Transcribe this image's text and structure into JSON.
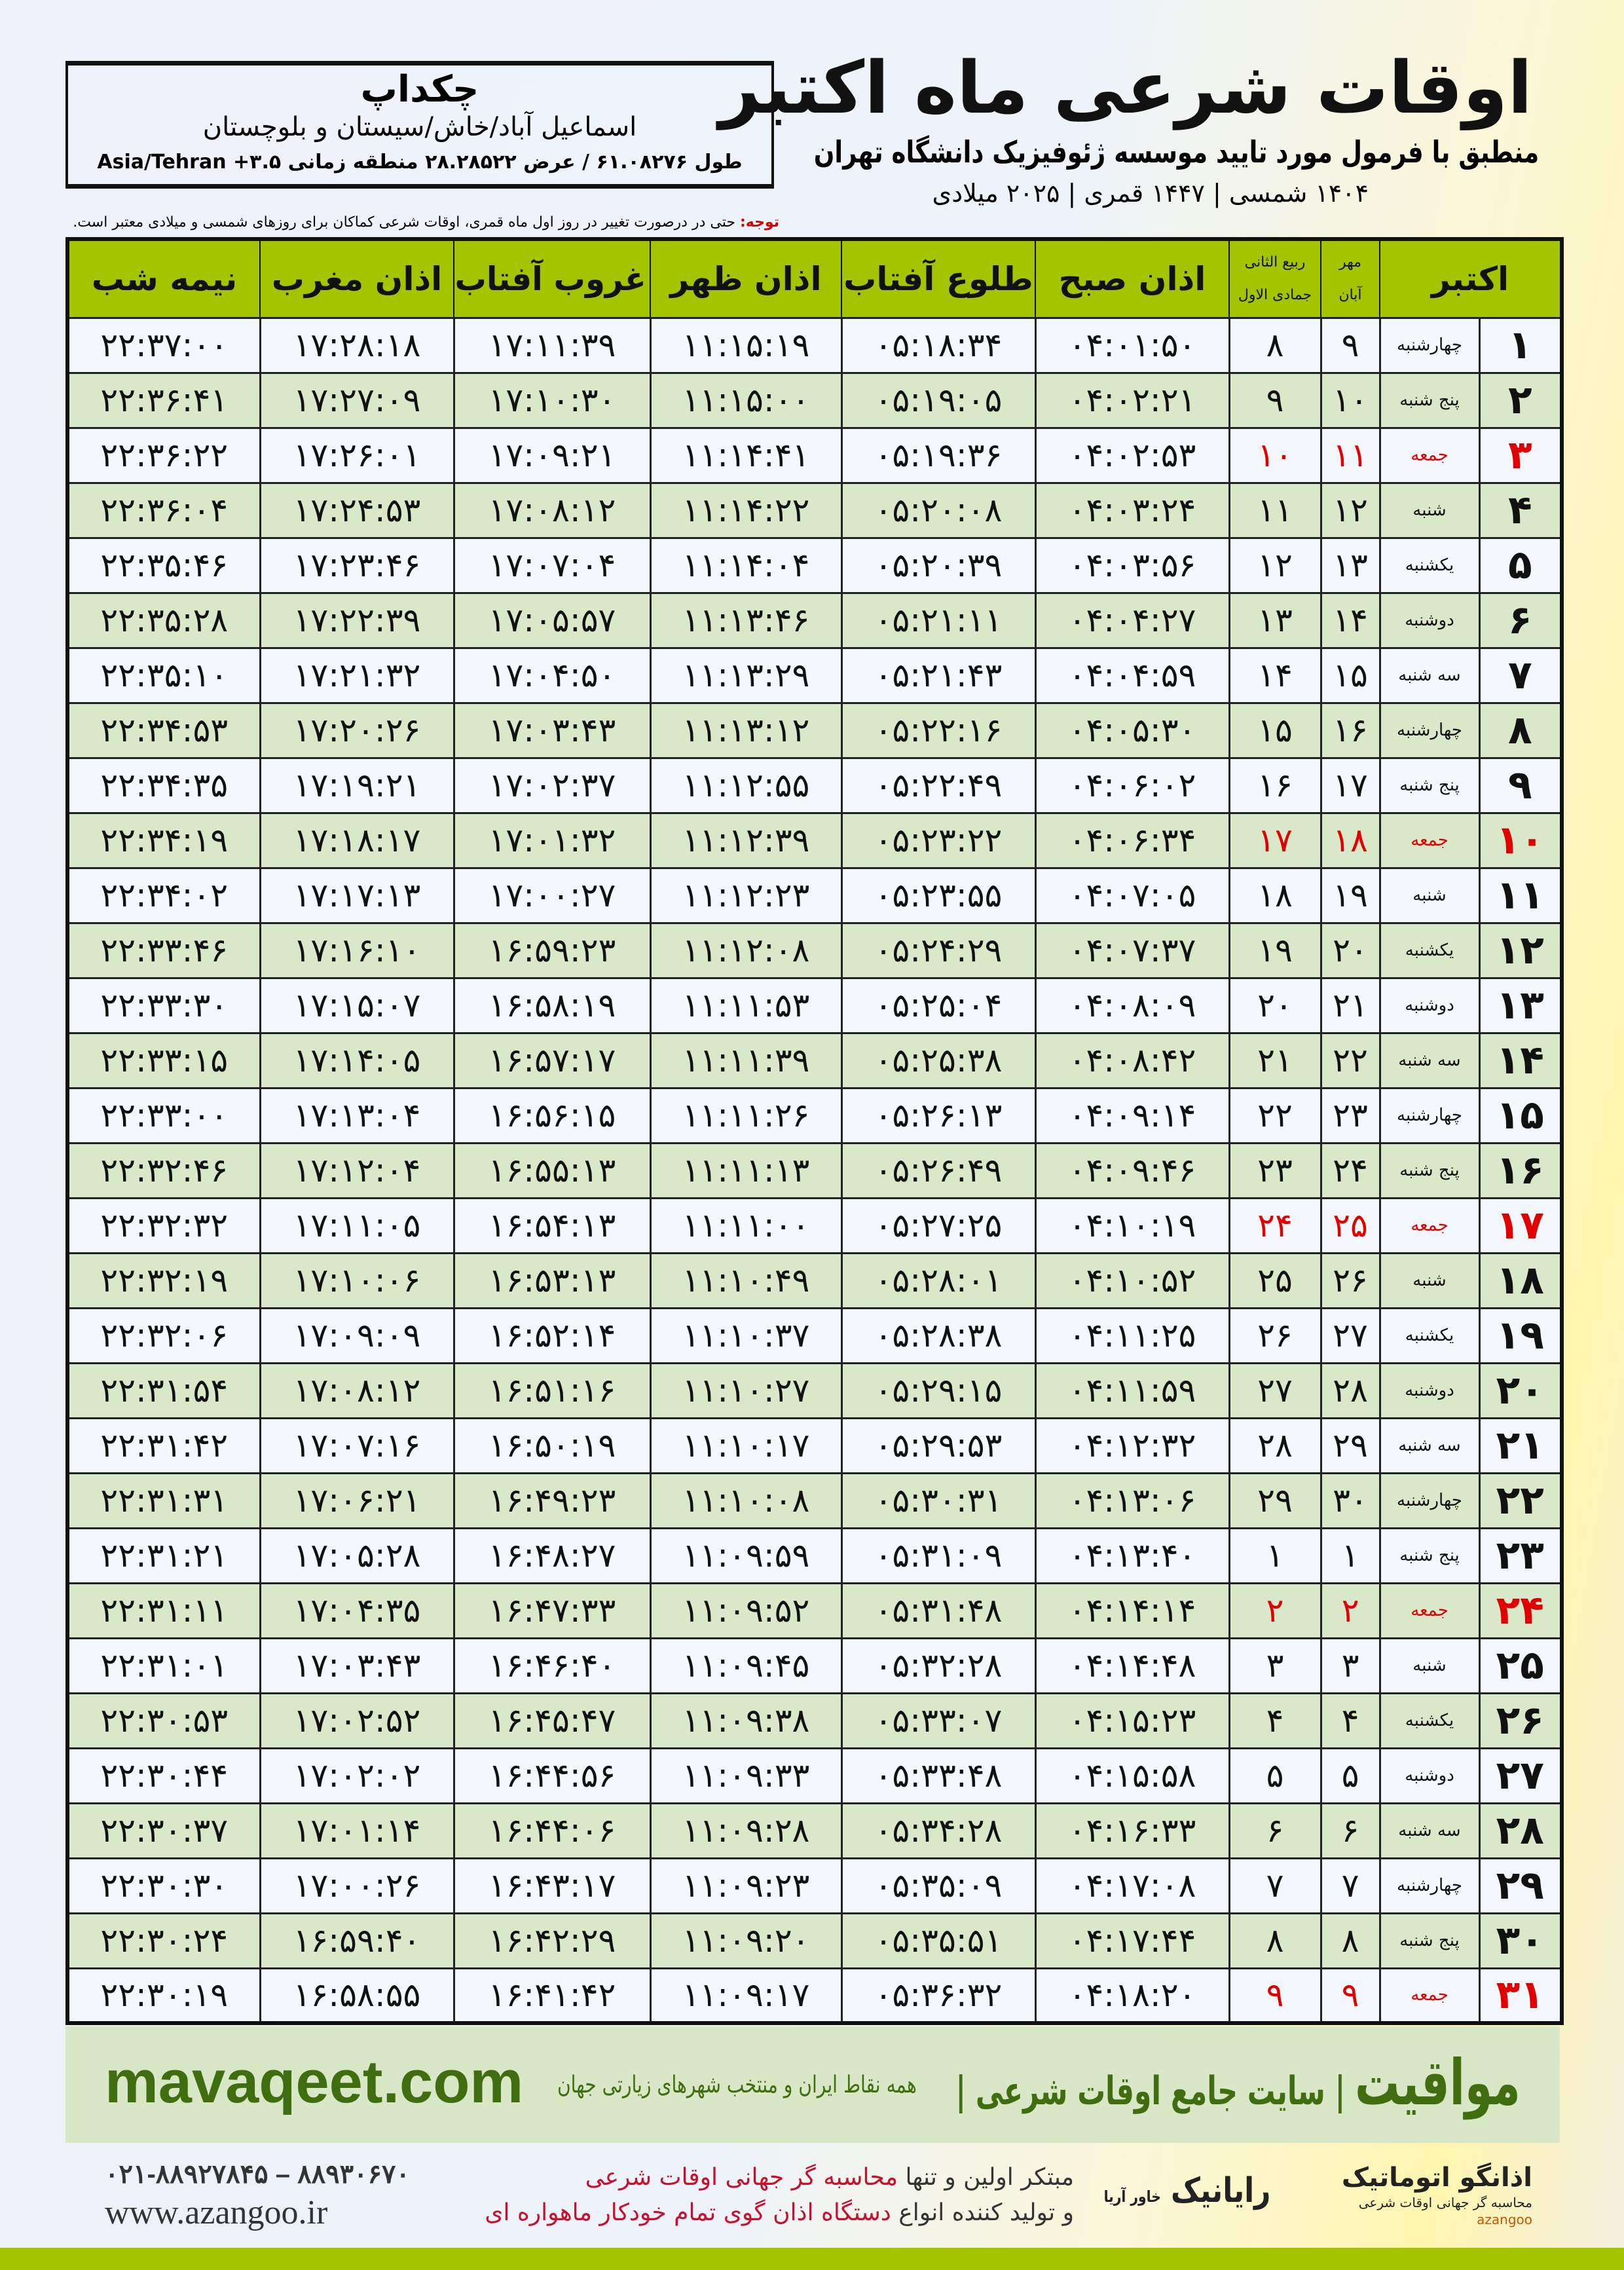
{
  "header": {
    "city": "چکداپ",
    "province": "اسماعیل آباد/خاش/سیستان و بلوچستان",
    "coords": "طول ۶۱.۰۸۲۷۶ / عرض ۲۸.۲۸۵۲۲ منطقه زمانی ۳.۵+ Asia/Tehran",
    "title": "اوقات شرعی ماه اکتبر",
    "subtitle": "منطبق با فرمول مورد تایید موسسه ژئوفیزیک دانشگاه تهران",
    "dateline": "۱۴۰۴ شمسی | ۱۴۴۷ قمری | ۲۰۲۵ میلادی",
    "note_label": "توجه:",
    "note_text": " حتی در درصورت تغییر در روز اول ماه قمری، اوقات شرعی کماکان برای روزهای شمسی و میلادی معتبر است."
  },
  "colors": {
    "header_green": "#a5c400",
    "row_green": "#d9e8c8",
    "friday_red": "#e00000",
    "brand_green": "#3f6d0f"
  },
  "columns": {
    "day": "اکتبر",
    "shamsi_top": "مهر",
    "shamsi_bottom": "آبان",
    "qamari_top": "ربیع الثانی",
    "qamari_bottom": "جمادی الاول",
    "fajr": "اذان صبح",
    "sunrise": "طلوع آفتاب",
    "dhuhr": "اذان ظهر",
    "sunset": "غروب آفتاب",
    "maghrib": "اذان مغرب",
    "midnight": "نیمه شب"
  },
  "rows": [
    {
      "day": "۱",
      "weekday": "چهارشنبه",
      "shamsi": "۹",
      "qamari": "۸",
      "fajr": "۰۴:۰۱:۵۰",
      "sunrise": "۰۵:۱۸:۳۴",
      "dhuhr": "۱۱:۱۵:۱۹",
      "sunset": "۱۷:۱۱:۳۹",
      "maghrib": "۱۷:۲۸:۱۸",
      "midnight": "۲۲:۳۷:۰۰",
      "friday": false
    },
    {
      "day": "۲",
      "weekday": "پنج شنبه",
      "shamsi": "۱۰",
      "qamari": "۹",
      "fajr": "۰۴:۰۲:۲۱",
      "sunrise": "۰۵:۱۹:۰۵",
      "dhuhr": "۱۱:۱۵:۰۰",
      "sunset": "۱۷:۱۰:۳۰",
      "maghrib": "۱۷:۲۷:۰۹",
      "midnight": "۲۲:۳۶:۴۱",
      "friday": false
    },
    {
      "day": "۳",
      "weekday": "جمعه",
      "shamsi": "۱۱",
      "qamari": "۱۰",
      "fajr": "۰۴:۰۲:۵۳",
      "sunrise": "۰۵:۱۹:۳۶",
      "dhuhr": "۱۱:۱۴:۴۱",
      "sunset": "۱۷:۰۹:۲۱",
      "maghrib": "۱۷:۲۶:۰۱",
      "midnight": "۲۲:۳۶:۲۲",
      "friday": true
    },
    {
      "day": "۴",
      "weekday": "شنبه",
      "shamsi": "۱۲",
      "qamari": "۱۱",
      "fajr": "۰۴:۰۳:۲۴",
      "sunrise": "۰۵:۲۰:۰۸",
      "dhuhr": "۱۱:۱۴:۲۲",
      "sunset": "۱۷:۰۸:۱۲",
      "maghrib": "۱۷:۲۴:۵۳",
      "midnight": "۲۲:۳۶:۰۴",
      "friday": false
    },
    {
      "day": "۵",
      "weekday": "یکشنبه",
      "shamsi": "۱۳",
      "qamari": "۱۲",
      "fajr": "۰۴:۰۳:۵۶",
      "sunrise": "۰۵:۲۰:۳۹",
      "dhuhr": "۱۱:۱۴:۰۴",
      "sunset": "۱۷:۰۷:۰۴",
      "maghrib": "۱۷:۲۳:۴۶",
      "midnight": "۲۲:۳۵:۴۶",
      "friday": false
    },
    {
      "day": "۶",
      "weekday": "دوشنبه",
      "shamsi": "۱۴",
      "qamari": "۱۳",
      "fajr": "۰۴:۰۴:۲۷",
      "sunrise": "۰۵:۲۱:۱۱",
      "dhuhr": "۱۱:۱۳:۴۶",
      "sunset": "۱۷:۰۵:۵۷",
      "maghrib": "۱۷:۲۲:۳۹",
      "midnight": "۲۲:۳۵:۲۸",
      "friday": false
    },
    {
      "day": "۷",
      "weekday": "سه شنبه",
      "shamsi": "۱۵",
      "qamari": "۱۴",
      "fajr": "۰۴:۰۴:۵۹",
      "sunrise": "۰۵:۲۱:۴۳",
      "dhuhr": "۱۱:۱۳:۲۹",
      "sunset": "۱۷:۰۴:۵۰",
      "maghrib": "۱۷:۲۱:۳۲",
      "midnight": "۲۲:۳۵:۱۰",
      "friday": false
    },
    {
      "day": "۸",
      "weekday": "چهارشنبه",
      "shamsi": "۱۶",
      "qamari": "۱۵",
      "fajr": "۰۴:۰۵:۳۰",
      "sunrise": "۰۵:۲۲:۱۶",
      "dhuhr": "۱۱:۱۳:۱۲",
      "sunset": "۱۷:۰۳:۴۳",
      "maghrib": "۱۷:۲۰:۲۶",
      "midnight": "۲۲:۳۴:۵۳",
      "friday": false
    },
    {
      "day": "۹",
      "weekday": "پنج شنبه",
      "shamsi": "۱۷",
      "qamari": "۱۶",
      "fajr": "۰۴:۰۶:۰۲",
      "sunrise": "۰۵:۲۲:۴۹",
      "dhuhr": "۱۱:۱۲:۵۵",
      "sunset": "۱۷:۰۲:۳۷",
      "maghrib": "۱۷:۱۹:۲۱",
      "midnight": "۲۲:۳۴:۳۵",
      "friday": false
    },
    {
      "day": "۱۰",
      "weekday": "جمعه",
      "shamsi": "۱۸",
      "qamari": "۱۷",
      "fajr": "۰۴:۰۶:۳۴",
      "sunrise": "۰۵:۲۳:۲۲",
      "dhuhr": "۱۱:۱۲:۳۹",
      "sunset": "۱۷:۰۱:۳۲",
      "maghrib": "۱۷:۱۸:۱۷",
      "midnight": "۲۲:۳۴:۱۹",
      "friday": true
    },
    {
      "day": "۱۱",
      "weekday": "شنبه",
      "shamsi": "۱۹",
      "qamari": "۱۸",
      "fajr": "۰۴:۰۷:۰۵",
      "sunrise": "۰۵:۲۳:۵۵",
      "dhuhr": "۱۱:۱۲:۲۳",
      "sunset": "۱۷:۰۰:۲۷",
      "maghrib": "۱۷:۱۷:۱۳",
      "midnight": "۲۲:۳۴:۰۲",
      "friday": false
    },
    {
      "day": "۱۲",
      "weekday": "یکشنبه",
      "shamsi": "۲۰",
      "qamari": "۱۹",
      "fajr": "۰۴:۰۷:۳۷",
      "sunrise": "۰۵:۲۴:۲۹",
      "dhuhr": "۱۱:۱۲:۰۸",
      "sunset": "۱۶:۵۹:۲۳",
      "maghrib": "۱۷:۱۶:۱۰",
      "midnight": "۲۲:۳۳:۴۶",
      "friday": false
    },
    {
      "day": "۱۳",
      "weekday": "دوشنبه",
      "shamsi": "۲۱",
      "qamari": "۲۰",
      "fajr": "۰۴:۰۸:۰۹",
      "sunrise": "۰۵:۲۵:۰۴",
      "dhuhr": "۱۱:۱۱:۵۳",
      "sunset": "۱۶:۵۸:۱۹",
      "maghrib": "۱۷:۱۵:۰۷",
      "midnight": "۲۲:۳۳:۳۰",
      "friday": false
    },
    {
      "day": "۱۴",
      "weekday": "سه شنبه",
      "shamsi": "۲۲",
      "qamari": "۲۱",
      "fajr": "۰۴:۰۸:۴۲",
      "sunrise": "۰۵:۲۵:۳۸",
      "dhuhr": "۱۱:۱۱:۳۹",
      "sunset": "۱۶:۵۷:۱۷",
      "maghrib": "۱۷:۱۴:۰۵",
      "midnight": "۲۲:۳۳:۱۵",
      "friday": false
    },
    {
      "day": "۱۵",
      "weekday": "چهارشنبه",
      "shamsi": "۲۳",
      "qamari": "۲۲",
      "fajr": "۰۴:۰۹:۱۴",
      "sunrise": "۰۵:۲۶:۱۳",
      "dhuhr": "۱۱:۱۱:۲۶",
      "sunset": "۱۶:۵۶:۱۵",
      "maghrib": "۱۷:۱۳:۰۴",
      "midnight": "۲۲:۳۳:۰۰",
      "friday": false
    },
    {
      "day": "۱۶",
      "weekday": "پنج شنبه",
      "shamsi": "۲۴",
      "qamari": "۲۳",
      "fajr": "۰۴:۰۹:۴۶",
      "sunrise": "۰۵:۲۶:۴۹",
      "dhuhr": "۱۱:۱۱:۱۳",
      "sunset": "۱۶:۵۵:۱۳",
      "maghrib": "۱۷:۱۲:۰۴",
      "midnight": "۲۲:۳۲:۴۶",
      "friday": false
    },
    {
      "day": "۱۷",
      "weekday": "جمعه",
      "shamsi": "۲۵",
      "qamari": "۲۴",
      "fajr": "۰۴:۱۰:۱۹",
      "sunrise": "۰۵:۲۷:۲۵",
      "dhuhr": "۱۱:۱۱:۰۰",
      "sunset": "۱۶:۵۴:۱۳",
      "maghrib": "۱۷:۱۱:۰۵",
      "midnight": "۲۲:۳۲:۳۲",
      "friday": true
    },
    {
      "day": "۱۸",
      "weekday": "شنبه",
      "shamsi": "۲۶",
      "qamari": "۲۵",
      "fajr": "۰۴:۱۰:۵۲",
      "sunrise": "۰۵:۲۸:۰۱",
      "dhuhr": "۱۱:۱۰:۴۹",
      "sunset": "۱۶:۵۳:۱۳",
      "maghrib": "۱۷:۱۰:۰۶",
      "midnight": "۲۲:۳۲:۱۹",
      "friday": false
    },
    {
      "day": "۱۹",
      "weekday": "یکشنبه",
      "shamsi": "۲۷",
      "qamari": "۲۶",
      "fajr": "۰۴:۱۱:۲۵",
      "sunrise": "۰۵:۲۸:۳۸",
      "dhuhr": "۱۱:۱۰:۳۷",
      "sunset": "۱۶:۵۲:۱۴",
      "maghrib": "۱۷:۰۹:۰۹",
      "midnight": "۲۲:۳۲:۰۶",
      "friday": false
    },
    {
      "day": "۲۰",
      "weekday": "دوشنبه",
      "shamsi": "۲۸",
      "qamari": "۲۷",
      "fajr": "۰۴:۱۱:۵۹",
      "sunrise": "۰۵:۲۹:۱۵",
      "dhuhr": "۱۱:۱۰:۲۷",
      "sunset": "۱۶:۵۱:۱۶",
      "maghrib": "۱۷:۰۸:۱۲",
      "midnight": "۲۲:۳۱:۵۴",
      "friday": false
    },
    {
      "day": "۲۱",
      "weekday": "سه شنبه",
      "shamsi": "۲۹",
      "qamari": "۲۸",
      "fajr": "۰۴:۱۲:۳۲",
      "sunrise": "۰۵:۲۹:۵۳",
      "dhuhr": "۱۱:۱۰:۱۷",
      "sunset": "۱۶:۵۰:۱۹",
      "maghrib": "۱۷:۰۷:۱۶",
      "midnight": "۲۲:۳۱:۴۲",
      "friday": false
    },
    {
      "day": "۲۲",
      "weekday": "چهارشنبه",
      "shamsi": "۳۰",
      "qamari": "۲۹",
      "fajr": "۰۴:۱۳:۰۶",
      "sunrise": "۰۵:۳۰:۳۱",
      "dhuhr": "۱۱:۱۰:۰۸",
      "sunset": "۱۶:۴۹:۲۳",
      "maghrib": "۱۷:۰۶:۲۱",
      "midnight": "۲۲:۳۱:۳۱",
      "friday": false
    },
    {
      "day": "۲۳",
      "weekday": "پنج شنبه",
      "shamsi": "۱",
      "qamari": "۱",
      "fajr": "۰۴:۱۳:۴۰",
      "sunrise": "۰۵:۳۱:۰۹",
      "dhuhr": "۱۱:۰۹:۵۹",
      "sunset": "۱۶:۴۸:۲۷",
      "maghrib": "۱۷:۰۵:۲۸",
      "midnight": "۲۲:۳۱:۲۱",
      "friday": false
    },
    {
      "day": "۲۴",
      "weekday": "جمعه",
      "shamsi": "۲",
      "qamari": "۲",
      "fajr": "۰۴:۱۴:۱۴",
      "sunrise": "۰۵:۳۱:۴۸",
      "dhuhr": "۱۱:۰۹:۵۲",
      "sunset": "۱۶:۴۷:۳۳",
      "maghrib": "۱۷:۰۴:۳۵",
      "midnight": "۲۲:۳۱:۱۱",
      "friday": true
    },
    {
      "day": "۲۵",
      "weekday": "شنبه",
      "shamsi": "۳",
      "qamari": "۳",
      "fajr": "۰۴:۱۴:۴۸",
      "sunrise": "۰۵:۳۲:۲۸",
      "dhuhr": "۱۱:۰۹:۴۵",
      "sunset": "۱۶:۴۶:۴۰",
      "maghrib": "۱۷:۰۳:۴۳",
      "midnight": "۲۲:۳۱:۰۱",
      "friday": false
    },
    {
      "day": "۲۶",
      "weekday": "یکشنبه",
      "shamsi": "۴",
      "qamari": "۴",
      "fajr": "۰۴:۱۵:۲۳",
      "sunrise": "۰۵:۳۳:۰۷",
      "dhuhr": "۱۱:۰۹:۳۸",
      "sunset": "۱۶:۴۵:۴۷",
      "maghrib": "۱۷:۰۲:۵۲",
      "midnight": "۲۲:۳۰:۵۳",
      "friday": false
    },
    {
      "day": "۲۷",
      "weekday": "دوشنبه",
      "shamsi": "۵",
      "qamari": "۵",
      "fajr": "۰۴:۱۵:۵۸",
      "sunrise": "۰۵:۳۳:۴۸",
      "dhuhr": "۱۱:۰۹:۳۳",
      "sunset": "۱۶:۴۴:۵۶",
      "maghrib": "۱۷:۰۲:۰۲",
      "midnight": "۲۲:۳۰:۴۴",
      "friday": false
    },
    {
      "day": "۲۸",
      "weekday": "سه شنبه",
      "shamsi": "۶",
      "qamari": "۶",
      "fajr": "۰۴:۱۶:۳۳",
      "sunrise": "۰۵:۳۴:۲۸",
      "dhuhr": "۱۱:۰۹:۲۸",
      "sunset": "۱۶:۴۴:۰۶",
      "maghrib": "۱۷:۰۱:۱۴",
      "midnight": "۲۲:۳۰:۳۷",
      "friday": false
    },
    {
      "day": "۲۹",
      "weekday": "چهارشنبه",
      "shamsi": "۷",
      "qamari": "۷",
      "fajr": "۰۴:۱۷:۰۸",
      "sunrise": "۰۵:۳۵:۰۹",
      "dhuhr": "۱۱:۰۹:۲۳",
      "sunset": "۱۶:۴۳:۱۷",
      "maghrib": "۱۷:۰۰:۲۶",
      "midnight": "۲۲:۳۰:۳۰",
      "friday": false
    },
    {
      "day": "۳۰",
      "weekday": "پنج شنبه",
      "shamsi": "۸",
      "qamari": "۸",
      "fajr": "۰۴:۱۷:۴۴",
      "sunrise": "۰۵:۳۵:۵۱",
      "dhuhr": "۱۱:۰۹:۲۰",
      "sunset": "۱۶:۴۲:۲۹",
      "maghrib": "۱۶:۵۹:۴۰",
      "midnight": "۲۲:۳۰:۲۴",
      "friday": false
    },
    {
      "day": "۳۱",
      "weekday": "جمعه",
      "shamsi": "۹",
      "qamari": "۹",
      "fajr": "۰۴:۱۸:۲۰",
      "sunrise": "۰۵:۳۶:۳۲",
      "dhuhr": "۱۱:۰۹:۱۷",
      "sunset": "۱۶:۴۱:۴۲",
      "maghrib": "۱۶:۵۸:۵۵",
      "midnight": "۲۲:۳۰:۱۹",
      "friday": true
    }
  ],
  "footer": {
    "mavaqeet_url": "mavaqeet.com",
    "mavaqeet_logo": "مواقیت",
    "mavaqeet_slogan": "| سایت جامع اوقات شرعی |",
    "mavaqeet_tagline": "همه نقاط ایران و منتخب شهرهای زیارتی جهان",
    "phone": "۰۲۱-۸۸۹۲۷۸۴۵ – ۸۸۹۳۰۶۷۰",
    "website": "www.azangoo.ir",
    "promo_1a": "مبتکر اولین و تنها ",
    "promo_1b": "محاسبه گر جهانی اوقات شرعی",
    "promo_2a": "و تولید کننده انواع ",
    "promo_2b": "دستگاه اذان گوی تمام خودکار ماهواره ای",
    "rayanik": "رایانیک",
    "rayanik_sub": "خاور آریا",
    "azangoo_name": "اذانگو اتوماتیک",
    "azangoo_sub": "محاسبه گر جهانی اوقات شرعی",
    "azangoo_en": "azangoo"
  }
}
